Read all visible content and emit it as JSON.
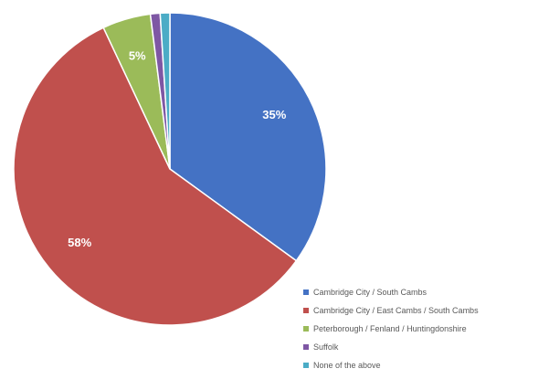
{
  "chart_data": {
    "type": "pie",
    "title": "",
    "start_angle_deg": 0,
    "direction": "clockwise",
    "slices": [
      {
        "label": "Cambridge City / South Cambs",
        "value": 35,
        "display": "35%",
        "color": "#4472c4"
      },
      {
        "label": "Cambridge City / East Cambs / South Cambs",
        "value": 58,
        "display": "58%",
        "color": "#c0504d"
      },
      {
        "label": "Peterborough / Fenland / Huntingdonshire",
        "value": 5,
        "display": "5%",
        "color": "#9bbb59"
      },
      {
        "label": "Suffolk",
        "value": 1,
        "display": "",
        "color": "#7e57a4"
      },
      {
        "label": "None of the above",
        "value": 1,
        "display": "",
        "color": "#4bacc6"
      }
    ],
    "legend_position": "bottom-right"
  }
}
